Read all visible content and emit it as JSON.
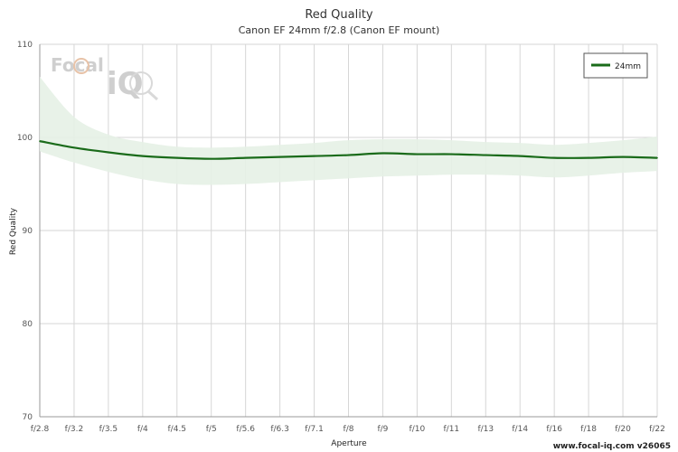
{
  "chart_data": {
    "type": "line",
    "title": "Red Quality",
    "subtitle": "Canon EF 24mm f/2.8 (Canon EF mount)",
    "xlabel": "Aperture",
    "ylabel": "Red Quality",
    "ylim": [
      70,
      110
    ],
    "yticks": [
      70,
      80,
      90,
      100,
      110
    ],
    "categories": [
      "f/2.8",
      "f/3.2",
      "f/3.5",
      "f/4",
      "f/4.5",
      "f/5",
      "f/5.6",
      "f/6.3",
      "f/7.1",
      "f/8",
      "f/9",
      "f/10",
      "f/11",
      "f/13",
      "f/14",
      "f/16",
      "f/18",
      "f/20",
      "f/22"
    ],
    "series": [
      {
        "name": "24mm",
        "color": "#1a6b1a",
        "values": [
          99.6,
          98.9,
          98.4,
          98.0,
          97.8,
          97.7,
          97.8,
          97.9,
          98.0,
          98.1,
          98.3,
          98.2,
          98.2,
          98.1,
          98.0,
          97.8,
          97.8,
          97.9,
          97.8
        ],
        "band_upper": [
          106.5,
          102.2,
          100.3,
          99.5,
          99.0,
          98.9,
          99.0,
          99.2,
          99.4,
          99.7,
          99.8,
          99.8,
          99.7,
          99.5,
          99.4,
          99.2,
          99.4,
          99.7,
          100.1
        ],
        "band_lower": [
          98.5,
          97.3,
          96.3,
          95.5,
          95.0,
          94.9,
          95.0,
          95.2,
          95.4,
          95.6,
          95.8,
          95.9,
          96.0,
          96.0,
          95.9,
          95.7,
          95.9,
          96.2,
          96.4
        ],
        "band_color": "#e6f1e6"
      }
    ],
    "grid": true,
    "legend": "top-right"
  },
  "branding": {
    "logo_word1": "Focal",
    "logo_word2": "iQ",
    "footer": "www.focal-iq.com  v26065"
  }
}
